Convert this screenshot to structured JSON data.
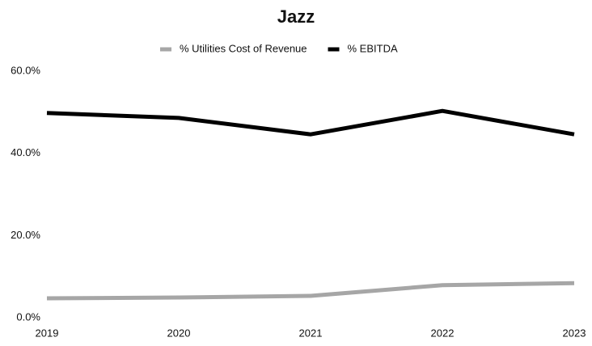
{
  "chart_data": {
    "type": "line",
    "title": "Jazz",
    "categories": [
      "2019",
      "2020",
      "2021",
      "2022",
      "2023"
    ],
    "series": [
      {
        "name": "% Utilities Cost of Revenue",
        "color": "#a6a6a6",
        "values": [
          5.7,
          5.9,
          6.3,
          8.9,
          9.4
        ]
      },
      {
        "name": "% EBITDA",
        "color": "#000000",
        "values": [
          50.8,
          49.6,
          45.6,
          51.3,
          45.6
        ]
      }
    ],
    "ylim": [
      0,
      60
    ],
    "yticks": [
      {
        "value": 0,
        "label": "0.0%"
      },
      {
        "value": 20,
        "label": "20.0%"
      },
      {
        "value": 40,
        "label": "40.0%"
      },
      {
        "value": 60,
        "label": "60.0%"
      }
    ],
    "grid": false,
    "legend": "top"
  }
}
